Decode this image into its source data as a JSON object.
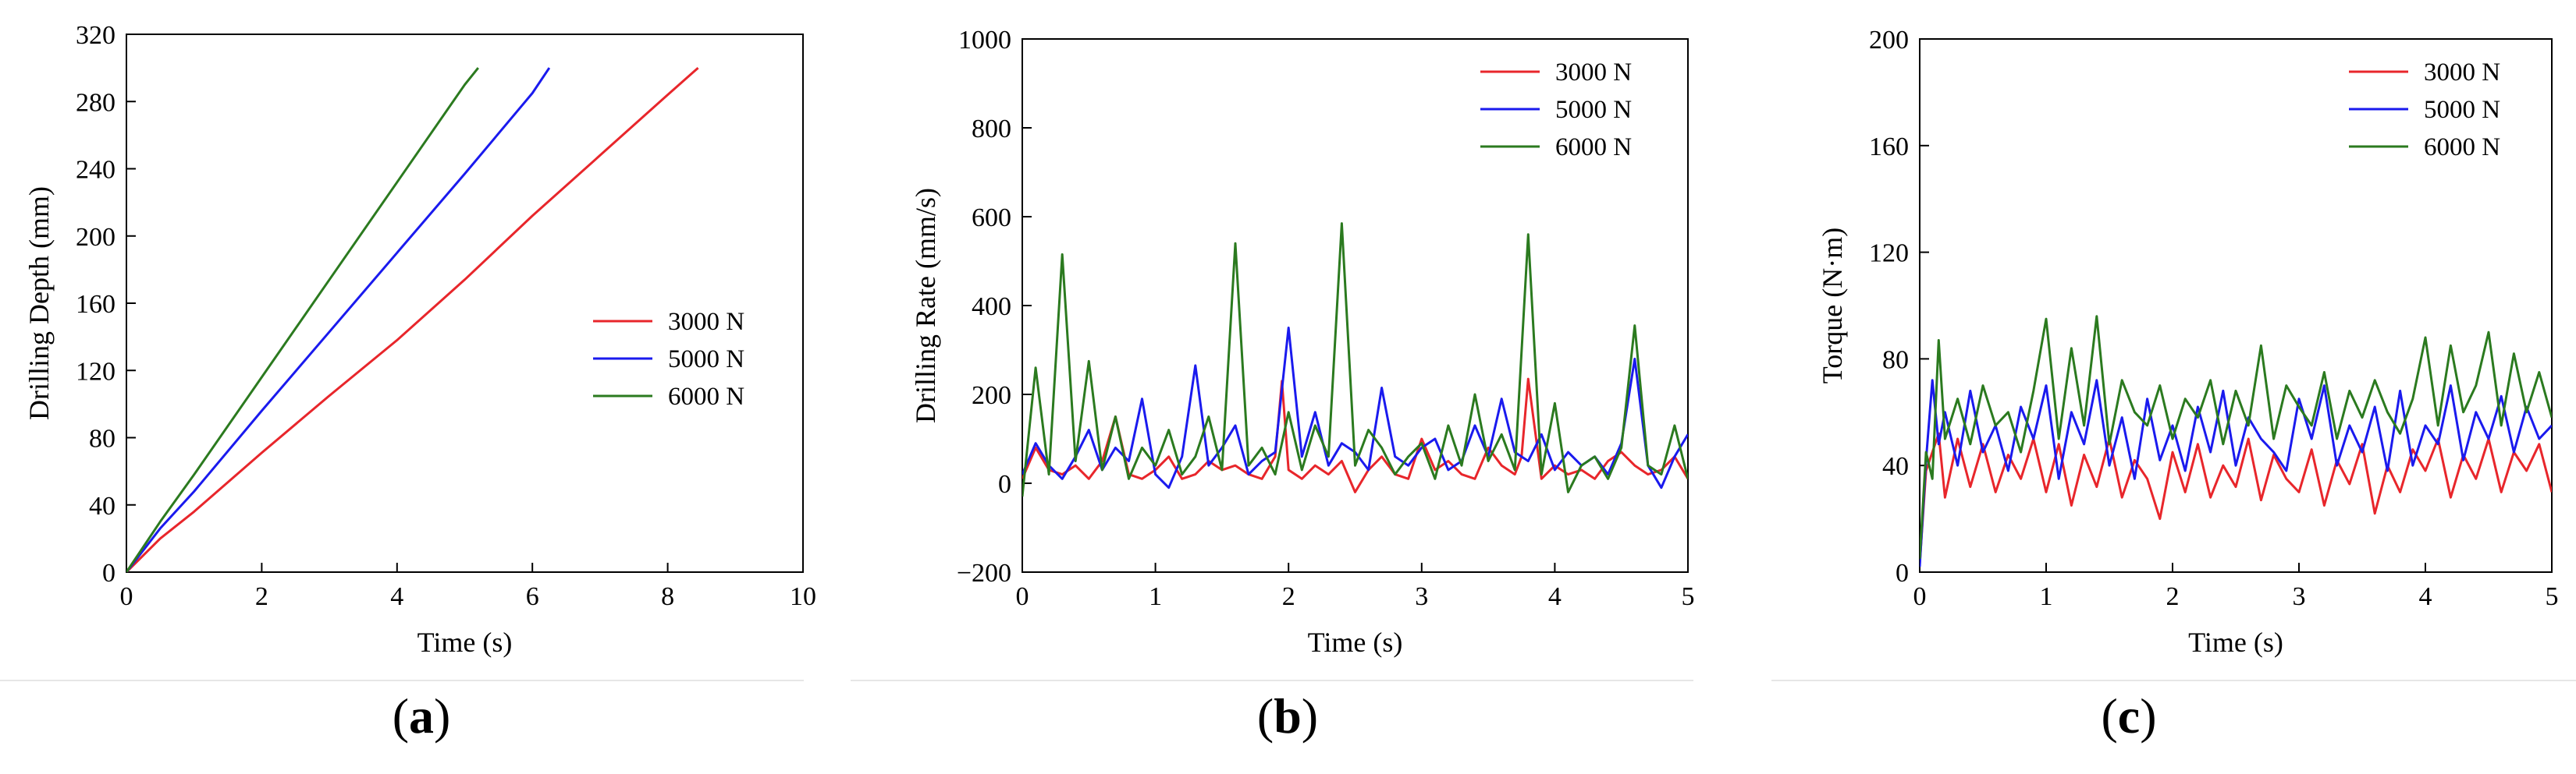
{
  "panel_labels": [
    {
      "open": "(",
      "letter": "a",
      "close": ")"
    },
    {
      "open": "(",
      "letter": "b",
      "close": ")"
    },
    {
      "open": "(",
      "letter": "c",
      "close": ")"
    }
  ],
  "colors": {
    "s3000": "#e8262b",
    "s5000": "#1a1aee",
    "s6000": "#2b7a1f"
  },
  "chart_data": [
    {
      "type": "line",
      "title": "",
      "xlabel": "Time (s)",
      "ylabel": "Drilling Depth (mm)",
      "xlim": [
        0,
        10
      ],
      "ylim": [
        0,
        320
      ],
      "xticks": [
        0,
        2,
        4,
        6,
        8,
        10
      ],
      "yticks": [
        0,
        40,
        80,
        120,
        160,
        200,
        240,
        280,
        320
      ],
      "legend": "center-right",
      "series": [
        {
          "name": "3000 N",
          "color": "#e8262b",
          "x": [
            0,
            0.5,
            1,
            2,
            3,
            4,
            5,
            6,
            7,
            8,
            8.45
          ],
          "y": [
            0,
            20,
            36,
            71,
            105,
            138,
            174,
            212,
            248,
            284,
            300
          ]
        },
        {
          "name": "5000 N",
          "color": "#1a1aee",
          "x": [
            0,
            0.5,
            1,
            2,
            3,
            4,
            5,
            6,
            6.25
          ],
          "y": [
            0,
            26,
            48,
            96,
            143,
            190,
            237,
            285,
            300
          ]
        },
        {
          "name": "6000 N",
          "color": "#2b7a1f",
          "x": [
            0,
            0.5,
            1,
            2,
            3,
            4,
            5,
            5.2
          ],
          "y": [
            0,
            30,
            58,
            116,
            174,
            232,
            290,
            300
          ]
        }
      ]
    },
    {
      "type": "line",
      "title": "",
      "xlabel": "Time (s)",
      "ylabel": "Drilling Rate (mm/s)",
      "xlim": [
        0,
        5
      ],
      "ylim": [
        -200,
        1000
      ],
      "xticks": [
        0,
        1,
        2,
        3,
        4,
        5
      ],
      "yticks": [
        -200,
        0,
        200,
        400,
        600,
        800,
        1000
      ],
      "ytick_labels": [
        "−200",
        "0",
        "200",
        "400",
        "600",
        "800",
        "1000"
      ],
      "legend": "top-right",
      "series": [
        {
          "name": "3000 N",
          "color": "#e8262b",
          "x": [
            0,
            0.1,
            0.2,
            0.3,
            0.4,
            0.5,
            0.6,
            0.7,
            0.8,
            0.9,
            1.0,
            1.1,
            1.2,
            1.3,
            1.4,
            1.5,
            1.6,
            1.7,
            1.8,
            1.9,
            1.95,
            2.0,
            2.1,
            2.2,
            2.3,
            2.4,
            2.5,
            2.6,
            2.7,
            2.8,
            2.9,
            3.0,
            3.1,
            3.2,
            3.3,
            3.4,
            3.5,
            3.6,
            3.7,
            3.75,
            3.8,
            3.9,
            4.0,
            4.1,
            4.2,
            4.3,
            4.4,
            4.5,
            4.6,
            4.7,
            4.8,
            4.9,
            5.0
          ],
          "y": [
            10,
            80,
            30,
            20,
            40,
            10,
            50,
            150,
            20,
            10,
            30,
            60,
            10,
            20,
            50,
            30,
            40,
            20,
            10,
            60,
            230,
            30,
            10,
            40,
            20,
            50,
            -20,
            30,
            60,
            20,
            10,
            100,
            30,
            50,
            20,
            10,
            80,
            40,
            20,
            60,
            235,
            10,
            40,
            20,
            30,
            10,
            50,
            70,
            40,
            20,
            30,
            60,
            10
          ]
        },
        {
          "name": "5000 N",
          "color": "#1a1aee",
          "x": [
            0,
            0.1,
            0.2,
            0.3,
            0.4,
            0.5,
            0.6,
            0.7,
            0.8,
            0.9,
            1.0,
            1.1,
            1.2,
            1.3,
            1.4,
            1.5,
            1.6,
            1.7,
            1.8,
            1.9,
            2.0,
            2.1,
            2.2,
            2.3,
            2.4,
            2.5,
            2.6,
            2.7,
            2.8,
            2.9,
            3.0,
            3.1,
            3.2,
            3.3,
            3.4,
            3.5,
            3.6,
            3.7,
            3.8,
            3.9,
            4.0,
            4.1,
            4.2,
            4.3,
            4.4,
            4.5,
            4.6,
            4.7,
            4.8,
            4.9,
            5.0
          ],
          "y": [
            20,
            90,
            40,
            10,
            60,
            120,
            30,
            80,
            50,
            190,
            20,
            -10,
            60,
            265,
            40,
            80,
            130,
            20,
            50,
            70,
            350,
            60,
            160,
            40,
            90,
            70,
            30,
            215,
            60,
            40,
            80,
            100,
            30,
            50,
            130,
            60,
            190,
            70,
            50,
            110,
            30,
            70,
            40,
            60,
            20,
            90,
            280,
            40,
            -10,
            60,
            110
          ]
        },
        {
          "name": "6000 N",
          "color": "#2b7a1f",
          "x": [
            0,
            0.1,
            0.2,
            0.3,
            0.4,
            0.5,
            0.6,
            0.7,
            0.8,
            0.9,
            1.0,
            1.1,
            1.2,
            1.3,
            1.4,
            1.5,
            1.6,
            1.7,
            1.8,
            1.9,
            2.0,
            2.1,
            2.2,
            2.3,
            2.4,
            2.5,
            2.6,
            2.7,
            2.8,
            2.9,
            3.0,
            3.1,
            3.2,
            3.3,
            3.4,
            3.5,
            3.6,
            3.7,
            3.8,
            3.9,
            4.0,
            4.1,
            4.2,
            4.3,
            4.4,
            4.5,
            4.6,
            4.7,
            4.8,
            4.9,
            5.0
          ],
          "y": [
            -30,
            260,
            20,
            515,
            50,
            275,
            30,
            150,
            10,
            80,
            40,
            120,
            20,
            60,
            150,
            30,
            540,
            40,
            80,
            20,
            160,
            30,
            130,
            60,
            585,
            40,
            120,
            80,
            20,
            60,
            90,
            10,
            130,
            40,
            200,
            50,
            110,
            30,
            560,
            20,
            180,
            -20,
            40,
            60,
            10,
            80,
            355,
            40,
            20,
            130,
            10
          ]
        }
      ]
    },
    {
      "type": "line",
      "title": "",
      "xlabel": "Time (s)",
      "ylabel": "Torque (N·m)",
      "xlim": [
        0,
        5
      ],
      "ylim": [
        0,
        200
      ],
      "xticks": [
        0,
        1,
        2,
        3,
        4,
        5
      ],
      "yticks": [
        0,
        40,
        80,
        120,
        160,
        200
      ],
      "legend": "top-right",
      "series": [
        {
          "name": "3000 N",
          "color": "#e8262b",
          "x": [
            0,
            0.05,
            0.1,
            0.15,
            0.2,
            0.3,
            0.4,
            0.5,
            0.6,
            0.7,
            0.8,
            0.9,
            1.0,
            1.1,
            1.2,
            1.3,
            1.4,
            1.5,
            1.6,
            1.7,
            1.8,
            1.9,
            2.0,
            2.1,
            2.2,
            2.3,
            2.4,
            2.5,
            2.6,
            2.7,
            2.8,
            2.9,
            3.0,
            3.1,
            3.2,
            3.3,
            3.4,
            3.5,
            3.6,
            3.7,
            3.8,
            3.9,
            4.0,
            4.1,
            4.2,
            4.3,
            4.4,
            4.5,
            4.6,
            4.7,
            4.8,
            4.9,
            5.0
          ],
          "y": [
            3,
            38,
            45,
            52,
            28,
            50,
            32,
            48,
            30,
            44,
            35,
            50,
            30,
            48,
            25,
            44,
            32,
            50,
            28,
            42,
            35,
            20,
            45,
            30,
            48,
            28,
            40,
            32,
            50,
            27,
            44,
            35,
            30,
            46,
            25,
            42,
            33,
            48,
            22,
            40,
            30,
            46,
            38,
            50,
            28,
            44,
            35,
            50,
            30,
            45,
            38,
            48,
            30
          ]
        },
        {
          "name": "5000 N",
          "color": "#1a1aee",
          "x": [
            0,
            0.05,
            0.1,
            0.15,
            0.2,
            0.3,
            0.4,
            0.5,
            0.6,
            0.7,
            0.8,
            0.9,
            1.0,
            1.1,
            1.2,
            1.3,
            1.4,
            1.5,
            1.6,
            1.7,
            1.8,
            1.9,
            2.0,
            2.1,
            2.2,
            2.3,
            2.4,
            2.5,
            2.6,
            2.7,
            2.8,
            2.9,
            3.0,
            3.1,
            3.2,
            3.3,
            3.4,
            3.5,
            3.6,
            3.7,
            3.8,
            3.9,
            4.0,
            4.1,
            4.2,
            4.3,
            4.4,
            4.5,
            4.6,
            4.7,
            4.8,
            4.9,
            5.0
          ],
          "y": [
            2,
            42,
            72,
            48,
            60,
            40,
            68,
            45,
            55,
            38,
            62,
            50,
            70,
            35,
            60,
            48,
            72,
            40,
            58,
            35,
            65,
            42,
            55,
            38,
            62,
            45,
            68,
            40,
            58,
            50,
            45,
            38,
            65,
            50,
            70,
            40,
            55,
            45,
            62,
            38,
            68,
            40,
            55,
            48,
            70,
            42,
            60,
            50,
            66,
            45,
            62,
            50,
            55
          ]
        },
        {
          "name": "6000 N",
          "color": "#2b7a1f",
          "x": [
            0,
            0.05,
            0.1,
            0.15,
            0.2,
            0.3,
            0.4,
            0.5,
            0.6,
            0.7,
            0.8,
            0.9,
            1.0,
            1.1,
            1.2,
            1.3,
            1.4,
            1.5,
            1.6,
            1.7,
            1.8,
            1.9,
            2.0,
            2.1,
            2.2,
            2.3,
            2.4,
            2.5,
            2.6,
            2.7,
            2.8,
            2.9,
            3.0,
            3.1,
            3.2,
            3.3,
            3.4,
            3.5,
            3.6,
            3.7,
            3.8,
            3.9,
            4.0,
            4.1,
            4.2,
            4.3,
            4.4,
            4.5,
            4.6,
            4.7,
            4.8,
            4.9,
            5.0
          ],
          "y": [
            5,
            45,
            35,
            87,
            50,
            65,
            48,
            70,
            55,
            60,
            45,
            68,
            95,
            50,
            84,
            55,
            96,
            48,
            72,
            60,
            55,
            70,
            50,
            65,
            58,
            72,
            48,
            68,
            55,
            85,
            50,
            70,
            62,
            55,
            75,
            50,
            68,
            58,
            72,
            60,
            52,
            65,
            88,
            55,
            85,
            60,
            70,
            90,
            55,
            82,
            60,
            75,
            58
          ]
        }
      ]
    }
  ]
}
